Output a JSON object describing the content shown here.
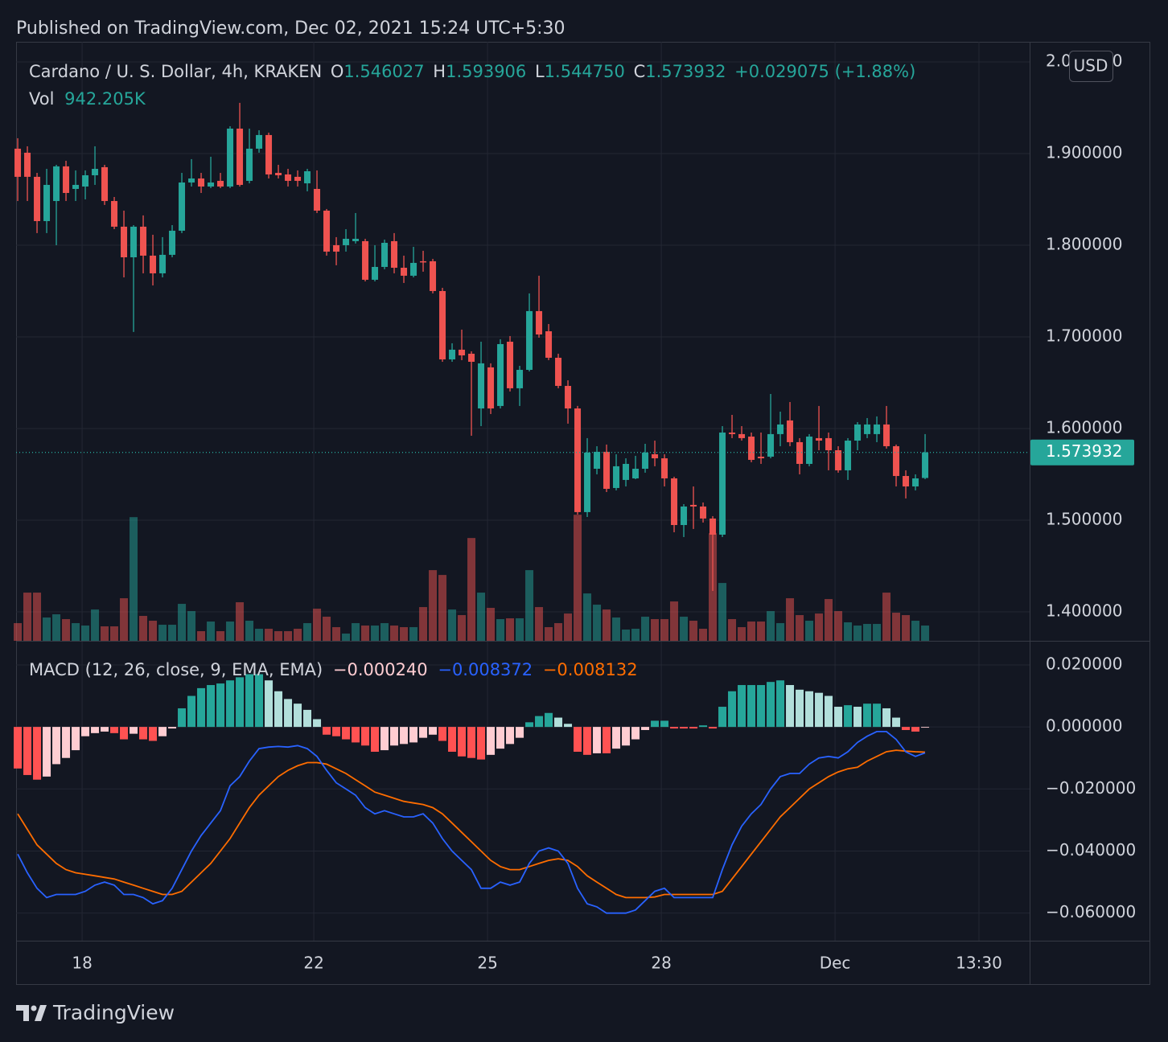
{
  "chart_data": {
    "type": "candlestick",
    "published": "Published on TradingView.com, Dec 02, 2021 15:24 UTC+5:30",
    "symbol": "Cardano / U. S. Dollar, 4h, KRAKEN",
    "ohlc_prefixes": [
      "O",
      "H",
      "L",
      "C"
    ],
    "ohlc_labels": [
      "1.546027",
      "1.593906",
      "1.544750",
      "1.573932"
    ],
    "change": "+0.029075 (+1.88%)",
    "volume_name": "Vol",
    "volume_label": "942.205K",
    "currency": "USD",
    "brand": "TradingView",
    "up_color": "#26a69a",
    "down_color": "#ef5350",
    "xlim": [
      -0.17,
      104.83
    ],
    "xticks": [
      {
        "value": 6.67,
        "label": "18"
      },
      {
        "value": 30.67,
        "label": "22"
      },
      {
        "value": 48.67,
        "label": "25"
      },
      {
        "value": 66.67,
        "label": "28"
      },
      {
        "value": 84.67,
        "label": "Dec"
      },
      {
        "value": 99.58,
        "label": "13:30"
      }
    ],
    "ylim": [
      1.3684,
      2.0219
    ],
    "yticks": [
      {
        "value": 1.4,
        "label": "1.400000"
      },
      {
        "value": 1.5,
        "label": "1.500000"
      },
      {
        "value": 1.6,
        "label": "1.600000"
      },
      {
        "value": 1.7,
        "label": "1.700000"
      },
      {
        "value": 1.8,
        "label": "1.800000"
      },
      {
        "value": 1.9,
        "label": "1.900000"
      },
      {
        "value": 2.0,
        "label": "2.000000"
      }
    ],
    "grid": true,
    "open": [
      1.9053,
      1.9009,
      1.8746,
      1.8263,
      1.8482,
      1.886,
      1.8614,
      1.864,
      1.8763,
      1.8851,
      1.8482,
      1.8202,
      1.7868,
      1.8202,
      1.7886,
      1.7693,
      1.7895,
      1.8158,
      1.8684,
      1.8728,
      1.864,
      1.8702,
      1.864,
      1.9272,
      1.8702,
      1.9053,
      1.9202,
      1.8789,
      1.8772,
      1.8746,
      1.8675,
      1.8614,
      1.8377,
      1.8,
      1.8,
      1.8044,
      1.8044,
      1.7623,
      1.7763,
      1.8044,
      1.7754,
      1.7667,
      1.7825,
      1.7825,
      1.75,
      1.6754,
      1.686,
      1.6816,
      1.6219,
      1.6667,
      1.6246,
      1.6947,
      1.6439,
      1.664,
      1.7281,
      1.7061,
      1.6772,
      1.6465,
      1.6219,
      1.5088,
      1.5561,
      1.5746,
      1.5351,
      1.5439,
      1.5456,
      1.5561,
      1.5719,
      1.5675,
      1.5456,
      1.4947,
      1.5167,
      1.5149,
      1.5018,
      1.4842,
      1.5956,
      1.5939,
      1.5912,
      1.5693,
      1.5693,
      1.5939,
      1.6088,
      1.5851,
      1.5614,
      1.5895,
      1.5895,
      1.5763,
      1.5544,
      1.5868,
      1.5939,
      1.5939,
      1.6044,
      1.5807,
      1.5482,
      1.5368,
      1.546027
    ],
    "high": [
      1.9167,
      1.9079,
      1.8789,
      1.8833,
      1.8877,
      1.8921,
      1.8816,
      1.8816,
      1.9079,
      1.8877,
      1.8526,
      1.8377,
      1.8219,
      1.8325,
      1.8114,
      1.8088,
      1.8219,
      1.8789,
      1.8939,
      1.8789,
      1.8965,
      1.8789,
      1.9298,
      1.9553,
      1.9272,
      1.9254,
      1.9228,
      1.8877,
      1.8833,
      1.8816,
      1.8833,
      1.8816,
      1.8395,
      1.8088,
      1.8175,
      1.8351,
      1.807,
      1.8,
      1.8061,
      1.8132,
      1.7886,
      1.7982,
      1.7939,
      1.7851,
      1.7535,
      1.693,
      1.7079,
      1.6842,
      1.6947,
      1.6711,
      1.6974,
      1.7009,
      1.6684,
      1.7474,
      1.7667,
      1.714,
      1.6816,
      1.6526,
      1.6246,
      1.5895,
      1.5807,
      1.5825,
      1.5719,
      1.5675,
      1.5702,
      1.5833,
      1.5868,
      1.5719,
      1.5474,
      1.5175,
      1.5368,
      1.5193,
      1.5044,
      1.6026,
      1.6149,
      1.6026,
      1.5956,
      1.5956,
      1.6377,
      1.6184,
      1.6289,
      1.5895,
      1.5939,
      1.6246,
      1.5956,
      1.5807,
      1.5895,
      1.607,
      1.6114,
      1.6132,
      1.6246,
      1.5825,
      1.5544,
      1.55,
      1.593906
    ],
    "low": [
      1.8482,
      1.8482,
      1.8132,
      1.8132,
      1.8,
      1.8482,
      1.8482,
      1.85,
      1.8658,
      1.8439,
      1.8175,
      1.7649,
      1.7053,
      1.7693,
      1.7561,
      1.7649,
      1.7868,
      1.8132,
      1.864,
      1.857,
      1.8623,
      1.8623,
      1.8623,
      1.864,
      1.8675,
      1.9009,
      1.8728,
      1.8728,
      1.864,
      1.864,
      1.8588,
      1.8351,
      1.7886,
      1.7781,
      1.793,
      1.8018,
      1.7605,
      1.7605,
      1.7737,
      1.7693,
      1.7588,
      1.7649,
      1.7711,
      1.7474,
      1.6728,
      1.6728,
      1.6746,
      1.5921,
      1.6026,
      1.6158,
      1.6219,
      1.6404,
      1.6246,
      1.6623,
      1.6991,
      1.6746,
      1.6439,
      1.6053,
      1.5061,
      1.5035,
      1.55,
      1.5307,
      1.5325,
      1.5368,
      1.5447,
      1.5518,
      1.5588,
      1.5368,
      1.4868,
      1.4816,
      1.4904,
      1.4974,
      1.4228,
      1.4816,
      1.5895,
      1.5868,
      1.5632,
      1.5614,
      1.5675,
      1.5807,
      1.5807,
      1.55,
      1.5588,
      1.5763,
      1.5544,
      1.5518,
      1.5439,
      1.5763,
      1.5895,
      1.5851,
      1.5781,
      1.5368,
      1.5237,
      1.5325,
      1.54475
    ],
    "close": [
      1.8746,
      1.8746,
      1.8263,
      1.8658,
      1.886,
      1.857,
      1.8658,
      1.8763,
      1.8833,
      1.8482,
      1.8202,
      1.7868,
      1.8202,
      1.7886,
      1.7693,
      1.7895,
      1.8158,
      1.8684,
      1.8728,
      1.864,
      1.8684,
      1.864,
      1.9272,
      1.8658,
      1.9053,
      1.9202,
      1.8772,
      1.8763,
      1.8702,
      1.8702,
      1.8807,
      1.8377,
      1.793,
      1.793,
      1.807,
      1.807,
      1.7623,
      1.7763,
      1.8026,
      1.7754,
      1.7667,
      1.7807,
      1.7816,
      1.75,
      1.6754,
      1.686,
      1.6798,
      1.6728,
      1.6711,
      1.6219,
      1.6921,
      1.6439,
      1.664,
      1.7281,
      1.7026,
      1.6772,
      1.6465,
      1.6219,
      1.5088,
      1.5737,
      1.5746,
      1.5342,
      1.5588,
      1.5614,
      1.5561,
      1.5737,
      1.5675,
      1.5456,
      1.4947,
      1.5149,
      1.5149,
      1.5018,
      1.4842,
      1.5956,
      1.5939,
      1.5895,
      1.5658,
      1.5675,
      1.5939,
      1.6044,
      1.5851,
      1.5614,
      1.5912,
      1.5868,
      1.5763,
      1.5544,
      1.5868,
      1.6044,
      1.6044,
      1.6044,
      1.5807,
      1.5482,
      1.5368,
      1.5456,
      1.573932
    ],
    "volume_ylim": [
      0,
      37000000
    ],
    "volume": [
      1091000,
      2976000,
      2976000,
      1438000,
      1637000,
      1339000,
      1091000,
      942000,
      1934000,
      893000,
      893000,
      2629000,
      7638000,
      1538000,
      1240000,
      992000,
      992000,
      2282000,
      1835000,
      595000,
      1190000,
      595000,
      1190000,
      2381000,
      1240000,
      744000,
      744000,
      595000,
      595000,
      744000,
      1091000,
      1984000,
      1488000,
      843000,
      446000,
      1091000,
      942000,
      942000,
      1091000,
      942000,
      843000,
      843000,
      2083000,
      4365000,
      4067000,
      1934000,
      1587000,
      6349000,
      2976000,
      2034000,
      1339000,
      1389000,
      1389000,
      4365000,
      2083000,
      843000,
      1091000,
      1686000,
      7787000,
      2926000,
      2232000,
      1934000,
      1438000,
      694000,
      744000,
      1488000,
      1339000,
      1339000,
      2430000,
      1488000,
      1240000,
      744000,
      6646000,
      3571000,
      1339000,
      843000,
      1190000,
      1190000,
      1835000,
      1091000,
      2629000,
      1587000,
      1240000,
      1686000,
      2579000,
      1835000,
      1141000,
      942000,
      1042000,
      1042000,
      2976000,
      1736000,
      1587000,
      1240000,
      942205
    ],
    "macd": {
      "type": "macd",
      "title": "MACD (12, 26, close, 9, EMA, EMA)",
      "value_labels": [
        "−0.000240",
        "−0.008372",
        "−0.008132"
      ],
      "hist_colors": [
        "#26a69a",
        "#b2dfdb",
        "#ffcdd2",
        "#ff5252"
      ],
      "macd_color": "#2962ff",
      "signal_color": "#ff6d00",
      "ylim": [
        -0.0689,
        0.0275
      ],
      "yticks": [
        {
          "value": 0.02,
          "label": "0.020000"
        },
        {
          "value": 0,
          "label": "0.000000"
        },
        {
          "value": -0.02,
          "label": "−0.020000"
        },
        {
          "value": -0.04,
          "label": "−0.040000"
        },
        {
          "value": -0.06,
          "label": "−0.060000"
        }
      ],
      "hist": [
        -0.0134,
        -0.0155,
        -0.017,
        -0.016,
        -0.012,
        -0.01,
        -0.0075,
        -0.003,
        -0.002,
        -0.0015,
        -0.002,
        -0.004,
        -0.0022,
        -0.004,
        -0.0045,
        -0.003,
        -0.0005,
        0.006,
        0.01,
        0.0125,
        0.0135,
        0.014,
        0.015,
        0.016,
        0.017,
        0.017,
        0.015,
        0.0115,
        0.009,
        0.0075,
        0.0055,
        0.0025,
        -0.0025,
        -0.003,
        -0.004,
        -0.005,
        -0.006,
        -0.008,
        -0.0075,
        -0.006,
        -0.0055,
        -0.005,
        -0.0035,
        -0.0025,
        -0.0045,
        -0.008,
        -0.0095,
        -0.01,
        -0.0105,
        -0.009,
        -0.007,
        -0.0055,
        -0.0035,
        0.0015,
        0.0035,
        0.0045,
        0.003,
        0.001,
        -0.008,
        -0.009,
        -0.0085,
        -0.0085,
        -0.007,
        -0.006,
        -0.004,
        -0.001,
        0.002,
        0.002,
        -0.0005,
        -0.0005,
        -0.0005,
        0.0005,
        -0.0005,
        0.0065,
        0.0115,
        0.0135,
        0.0135,
        0.0135,
        0.0145,
        0.015,
        0.0135,
        0.012,
        0.0115,
        0.011,
        0.01,
        0.0065,
        0.007,
        0.0065,
        0.0075,
        0.0075,
        0.006,
        0.003,
        -0.001,
        -0.0015,
        -0.00024
      ],
      "macd": [
        -0.041,
        -0.047,
        -0.052,
        -0.055,
        -0.054,
        -0.054,
        -0.054,
        -0.053,
        -0.051,
        -0.05,
        -0.051,
        -0.054,
        -0.054,
        -0.055,
        -0.057,
        -0.056,
        -0.052,
        -0.046,
        -0.04,
        -0.035,
        -0.031,
        -0.027,
        -0.019,
        -0.016,
        -0.011,
        -0.007,
        -0.0065,
        -0.0063,
        -0.0065,
        -0.006,
        -0.007,
        -0.0095,
        -0.014,
        -0.018,
        -0.02,
        -0.022,
        -0.026,
        -0.028,
        -0.027,
        -0.028,
        -0.029,
        -0.029,
        -0.028,
        -0.031,
        -0.036,
        -0.04,
        -0.043,
        -0.046,
        -0.052,
        -0.052,
        -0.05,
        -0.051,
        -0.05,
        -0.044,
        -0.04,
        -0.039,
        -0.04,
        -0.044,
        -0.052,
        -0.057,
        -0.058,
        -0.06,
        -0.06,
        -0.06,
        -0.059,
        -0.056,
        -0.053,
        -0.052,
        -0.055,
        -0.055,
        -0.055,
        -0.055,
        -0.055,
        -0.046,
        -0.038,
        -0.032,
        -0.028,
        -0.025,
        -0.02,
        -0.016,
        -0.015,
        -0.015,
        -0.012,
        -0.01,
        -0.0095,
        -0.01,
        -0.008,
        -0.005,
        -0.003,
        -0.0015,
        -0.0015,
        -0.004,
        -0.008,
        -0.0095,
        -0.008372
      ],
      "signal": [
        -0.028,
        -0.033,
        -0.038,
        -0.041,
        -0.044,
        -0.046,
        -0.047,
        -0.0475,
        -0.048,
        -0.0485,
        -0.049,
        -0.05,
        -0.051,
        -0.052,
        -0.053,
        -0.054,
        -0.054,
        -0.053,
        -0.05,
        -0.047,
        -0.044,
        -0.04,
        -0.036,
        -0.031,
        -0.026,
        -0.022,
        -0.019,
        -0.016,
        -0.014,
        -0.0125,
        -0.0115,
        -0.0115,
        -0.012,
        -0.0135,
        -0.015,
        -0.017,
        -0.019,
        -0.021,
        -0.022,
        -0.023,
        -0.024,
        -0.0245,
        -0.025,
        -0.026,
        -0.028,
        -0.031,
        -0.034,
        -0.037,
        -0.04,
        -0.043,
        -0.045,
        -0.046,
        -0.046,
        -0.045,
        -0.044,
        -0.043,
        -0.0425,
        -0.043,
        -0.045,
        -0.048,
        -0.05,
        -0.052,
        -0.054,
        -0.055,
        -0.055,
        -0.055,
        -0.0548,
        -0.054,
        -0.054,
        -0.054,
        -0.054,
        -0.054,
        -0.054,
        -0.053,
        -0.049,
        -0.045,
        -0.041,
        -0.037,
        -0.033,
        -0.029,
        -0.026,
        -0.023,
        -0.02,
        -0.018,
        -0.016,
        -0.0145,
        -0.0135,
        -0.013,
        -0.011,
        -0.0095,
        -0.008,
        -0.0075,
        -0.0078,
        -0.008,
        -0.008132
      ]
    }
  }
}
